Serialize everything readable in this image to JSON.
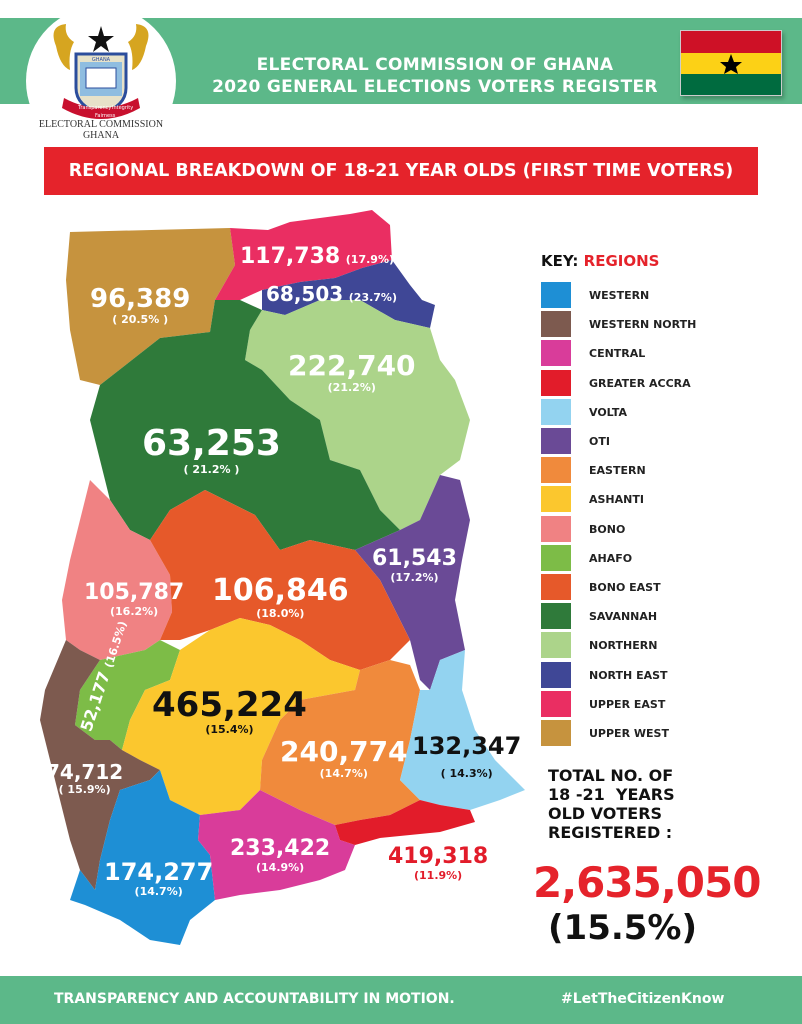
{
  "header": {
    "title_line1": "ELECTORAL COMMISSION OF GHANA",
    "title_line2": "2020 GENERAL ELECTIONS VOTERS REGISTER",
    "logo_caption_line1": "ELECTORAL COMMISSION",
    "logo_caption_line2": "GHANA",
    "logo_motto_left": "Transparency",
    "logo_motto_center": "Fairness",
    "logo_motto_right": "Integrity",
    "logo_shield_text": "GHANA",
    "flag_colors": {
      "top": "#ce1126",
      "middle": "#fcd116",
      "bottom": "#006b3f",
      "star": "#000000"
    }
  },
  "banner": {
    "text": "REGIONAL BREAKDOWN OF 18-21 YEAR OLDS (FIRST TIME VOTERS)"
  },
  "key": {
    "title_prefix": "KEY:",
    "title_highlight": "REGIONS",
    "items": [
      {
        "label": "WESTERN",
        "color": "#1e8fd5"
      },
      {
        "label": "WESTERN NORTH",
        "color": "#7d5a4f"
      },
      {
        "label": "CENTRAL",
        "color": "#d93c9a"
      },
      {
        "label": "GREATER ACCRA",
        "color": "#e21c2a"
      },
      {
        "label": "VOLTA",
        "color": "#93d3f0"
      },
      {
        "label": "OTI",
        "color": "#6a4a96"
      },
      {
        "label": "EASTERN",
        "color": "#f08a3c"
      },
      {
        "label": "ASHANTI",
        "color": "#fbc72e"
      },
      {
        "label": "BONO",
        "color": "#f08283"
      },
      {
        "label": "AHAFO",
        "color": "#7dbc47"
      },
      {
        "label": "BONO EAST",
        "color": "#e6592a"
      },
      {
        "label": "SAVANNAH",
        "color": "#2f7a3a"
      },
      {
        "label": "NORTHERN",
        "color": "#acd48a"
      },
      {
        "label": "NORTH EAST",
        "color": "#3f4796"
      },
      {
        "label": "UPPER EAST",
        "color": "#ea2e62"
      },
      {
        "label": "UPPER WEST",
        "color": "#c6933e"
      }
    ]
  },
  "regions": [
    {
      "id": "upper-west",
      "name": "UPPER WEST",
      "value": "96,389",
      "pct": "( 20.5% )",
      "color": "#c6933e",
      "text_color": "#ffffff"
    },
    {
      "id": "upper-east",
      "name": "UPPER EAST",
      "value": "117,738",
      "pct": "(17.9%)",
      "color": "#ea2e62",
      "text_color": "#ffffff"
    },
    {
      "id": "north-east",
      "name": "NORTH EAST",
      "value": "68,503",
      "pct": "(23.7%)",
      "color": "#3f4796",
      "text_color": "#ffffff"
    },
    {
      "id": "northern",
      "name": "NORTHERN",
      "value": "222,740",
      "pct": "(21.2%)",
      "color": "#acd48a",
      "text_color": "#ffffff"
    },
    {
      "id": "savannah",
      "name": "SAVANNAH",
      "value": "63,253",
      "pct": "( 21.2% )",
      "color": "#2f7a3a",
      "text_color": "#ffffff"
    },
    {
      "id": "bono",
      "name": "BONO",
      "value": "105,787",
      "pct": "(16.2%)",
      "color": "#f08283",
      "text_color": "#ffffff"
    },
    {
      "id": "bono-east",
      "name": "BONO EAST",
      "value": "106,846",
      "pct": "(18.0%)",
      "color": "#e6592a",
      "text_color": "#ffffff"
    },
    {
      "id": "oti",
      "name": "OTI",
      "value": "61,543",
      "pct": "(17.2%)",
      "color": "#6a4a96",
      "text_color": "#ffffff"
    },
    {
      "id": "ahafo",
      "name": "AHAFO",
      "value": "52,177",
      "pct": "(16.5%)",
      "color": "#7dbc47",
      "text_color": "#ffffff"
    },
    {
      "id": "ashanti",
      "name": "ASHANTI",
      "value": "465,224",
      "pct": "(15.4%)",
      "color": "#fbc72e",
      "text_color": "#111111"
    },
    {
      "id": "eastern",
      "name": "EASTERN",
      "value": "240,774",
      "pct": "(14.7%)",
      "color": "#f08a3c",
      "text_color": "#ffffff"
    },
    {
      "id": "volta",
      "name": "VOLTA",
      "value": "132,347",
      "pct": "( 14.3%)",
      "color": "#93d3f0",
      "text_color": "#111111"
    },
    {
      "id": "western-north",
      "name": "WESTERN NORTH",
      "value": "74,712",
      "pct": "( 15.9%)",
      "color": "#7d5a4f",
      "text_color": "#ffffff"
    },
    {
      "id": "western",
      "name": "WESTERN",
      "value": "174,277",
      "pct": "(14.7%)",
      "color": "#1e8fd5",
      "text_color": "#ffffff"
    },
    {
      "id": "central",
      "name": "CENTRAL",
      "value": "233,422",
      "pct": "(14.9%)",
      "color": "#d93c9a",
      "text_color": "#ffffff"
    },
    {
      "id": "greater-accra",
      "name": "GREATER ACCRA",
      "value": "419,318",
      "pct": "(11.9%)",
      "color": "#e21c2a",
      "text_color": "#e21c2a"
    }
  ],
  "total": {
    "label_line1": "TOTAL NO. OF",
    "label_line2": "18 -21  YEARS",
    "label_line3": "OLD VOTERS",
    "label_line4": "REGISTERED :",
    "value": "2,635,050",
    "pct": "(15.5%)"
  },
  "footer": {
    "left_text": "TRANSPARENCY AND ACCOUNTABILITY IN MOTION.",
    "right_text": "#LetTheCitizenKnow"
  }
}
